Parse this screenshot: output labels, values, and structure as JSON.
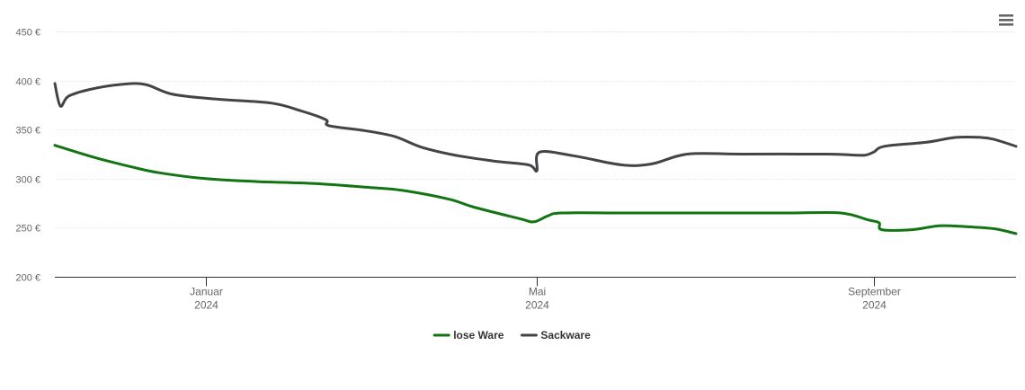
{
  "chart_data": {
    "type": "line",
    "title": "",
    "xlabel": "",
    "ylabel": "",
    "ylim": [
      200,
      450
    ],
    "y_ticks": [
      {
        "value": 200,
        "label": "200 €"
      },
      {
        "value": 250,
        "label": "250 €"
      },
      {
        "value": 300,
        "label": "300 €"
      },
      {
        "value": 350,
        "label": "350 €"
      },
      {
        "value": 400,
        "label": "400 €"
      },
      {
        "value": 450,
        "label": "450 €"
      }
    ],
    "xlim": [
      "2023-11-07",
      "2024-10-23"
    ],
    "x_ticks": [
      {
        "date": "2024-01-01",
        "month": "Januar",
        "year": "2024"
      },
      {
        "date": "2024-05-01",
        "month": "Mai",
        "year": "2024"
      },
      {
        "date": "2024-09-01",
        "month": "September",
        "year": "2024"
      }
    ],
    "grid": "horizontal",
    "legend_position": "bottom",
    "series": [
      {
        "name": "lose Ware",
        "color": "#137512",
        "points": [
          [
            "2023-11-07",
            334
          ],
          [
            "2023-11-21",
            322
          ],
          [
            "2023-12-05",
            312
          ],
          [
            "2023-12-15",
            306
          ],
          [
            "2024-01-01",
            300
          ],
          [
            "2024-01-20",
            297
          ],
          [
            "2024-02-10",
            295
          ],
          [
            "2024-03-01",
            291
          ],
          [
            "2024-03-13",
            288
          ],
          [
            "2024-03-30",
            279
          ],
          [
            "2024-04-08",
            271
          ],
          [
            "2024-04-25",
            259
          ],
          [
            "2024-04-30",
            256
          ],
          [
            "2024-05-05",
            262
          ],
          [
            "2024-05-10",
            265
          ],
          [
            "2024-06-01",
            265
          ],
          [
            "2024-07-01",
            265
          ],
          [
            "2024-08-01",
            265
          ],
          [
            "2024-08-20",
            265
          ],
          [
            "2024-08-30",
            258
          ],
          [
            "2024-09-03",
            255
          ],
          [
            "2024-09-04",
            248
          ],
          [
            "2024-09-15",
            248
          ],
          [
            "2024-09-25",
            252
          ],
          [
            "2024-10-05",
            251
          ],
          [
            "2024-10-15",
            249
          ],
          [
            "2024-10-23",
            244
          ]
        ]
      },
      {
        "name": "Sackware",
        "color": "#434348",
        "points": [
          [
            "2023-11-07",
            397
          ],
          [
            "2023-11-09",
            374
          ],
          [
            "2023-11-12",
            384
          ],
          [
            "2023-11-20",
            391
          ],
          [
            "2023-12-01",
            396
          ],
          [
            "2023-12-10",
            396
          ],
          [
            "2023-12-20",
            386
          ],
          [
            "2024-01-05",
            381
          ],
          [
            "2024-01-25",
            377
          ],
          [
            "2024-02-05",
            369
          ],
          [
            "2024-02-14",
            360
          ],
          [
            "2024-02-15",
            354
          ],
          [
            "2024-02-28",
            349
          ],
          [
            "2024-03-10",
            343
          ],
          [
            "2024-03-20",
            332
          ],
          [
            "2024-04-01",
            324
          ],
          [
            "2024-04-15",
            318
          ],
          [
            "2024-04-28",
            314
          ],
          [
            "2024-05-01",
            308
          ],
          [
            "2024-05-02",
            327
          ],
          [
            "2024-05-15",
            323
          ],
          [
            "2024-06-01",
            314
          ],
          [
            "2024-06-12",
            315
          ],
          [
            "2024-06-25",
            325
          ],
          [
            "2024-07-15",
            325
          ],
          [
            "2024-08-15",
            325
          ],
          [
            "2024-08-25",
            324
          ],
          [
            "2024-08-29",
            324
          ],
          [
            "2024-09-01",
            327
          ],
          [
            "2024-09-05",
            333
          ],
          [
            "2024-09-20",
            337
          ],
          [
            "2024-10-01",
            342
          ],
          [
            "2024-10-10",
            342
          ],
          [
            "2024-10-15",
            340
          ],
          [
            "2024-10-23",
            333
          ]
        ]
      }
    ]
  },
  "menu": {
    "icon": "hamburger-menu-icon"
  }
}
